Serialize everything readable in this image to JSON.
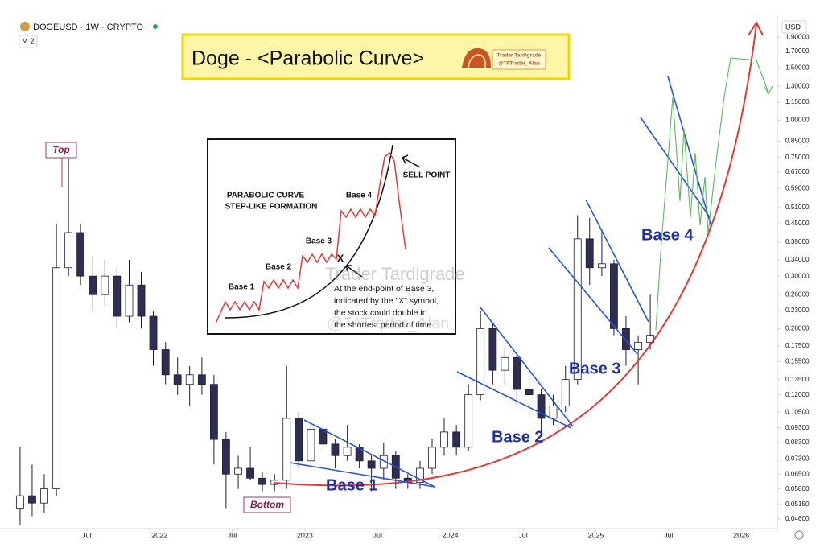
{
  "header": {
    "symbol": "DOGEUSD · 1W · CRYPTO",
    "interval_badge": "2",
    "currency": "USD"
  },
  "banner": {
    "title": "Doge - <Parabolic Curve>",
    "brand": "Trader Tardigrade",
    "handle": "@TATrader_Alan"
  },
  "inset": {
    "heading_1": "PARABOLIC CURVE",
    "heading_2": "STEP-LIKE FORMATION",
    "base_1": "Base 1",
    "base_2": "Base 2",
    "base_3": "Base 3",
    "base_4": "Base 4",
    "sell": "SELL POINT",
    "x_mark": "X",
    "note": [
      "At the end-point of Base 3,",
      "indicated by the \"X\" symbol,",
      "the stock could double in",
      "the shortest period of time"
    ]
  },
  "watermark": {
    "name": "Trader Tardigrade",
    "handle": "@TATrader_Alan"
  },
  "chart_data": {
    "type": "candlestick",
    "log_scale": true,
    "grid": false,
    "up_color": "#ffffff",
    "down_color": "#2e2e52",
    "edge_color": "#1c1c3a",
    "annotations": {
      "top": "Top",
      "bottom": "Bottom",
      "base_1": "Base 1",
      "base_2": "Base 2",
      "base_3": "Base 3",
      "base_4": "Base 4"
    },
    "x": [
      2021.042,
      2021.125,
      2021.208,
      2021.292,
      2021.375,
      2021.458,
      2021.542,
      2021.625,
      2021.708,
      2021.792,
      2021.875,
      2021.958,
      2022.042,
      2022.125,
      2022.208,
      2022.292,
      2022.375,
      2022.458,
      2022.542,
      2022.625,
      2022.708,
      2022.792,
      2022.875,
      2022.958,
      2023.042,
      2023.125,
      2023.208,
      2023.292,
      2023.375,
      2023.458,
      2023.542,
      2023.625,
      2023.708,
      2023.792,
      2023.875,
      2023.958,
      2024.042,
      2024.125,
      2024.208,
      2024.292,
      2024.375,
      2024.458,
      2024.542,
      2024.625,
      2024.708,
      2024.792,
      2024.875,
      2024.958,
      2025.042,
      2025.125,
      2025.208,
      2025.292,
      2025.375
    ],
    "open": [
      0.05,
      0.055,
      0.052,
      0.058,
      0.32,
      0.42,
      0.3,
      0.26,
      0.3,
      0.22,
      0.28,
      0.22,
      0.17,
      0.14,
      0.13,
      0.14,
      0.13,
      0.085,
      0.065,
      0.068,
      0.063,
      0.06,
      0.062,
      0.1,
      0.072,
      0.092,
      0.082,
      0.075,
      0.08,
      0.072,
      0.068,
      0.075,
      0.063,
      0.061,
      0.068,
      0.08,
      0.09,
      0.08,
      0.12,
      0.2,
      0.145,
      0.16,
      0.125,
      0.12,
      0.1,
      0.11,
      0.135,
      0.4,
      0.32,
      0.33,
      0.2,
      0.17,
      0.18
    ],
    "high": [
      0.08,
      0.07,
      0.065,
      0.45,
      0.74,
      0.45,
      0.35,
      0.34,
      0.32,
      0.34,
      0.31,
      0.23,
      0.18,
      0.16,
      0.15,
      0.16,
      0.14,
      0.09,
      0.075,
      0.08,
      0.066,
      0.065,
      0.15,
      0.105,
      0.095,
      0.095,
      0.085,
      0.095,
      0.082,
      0.075,
      0.083,
      0.078,
      0.065,
      0.072,
      0.085,
      0.1,
      0.095,
      0.13,
      0.23,
      0.21,
      0.175,
      0.165,
      0.145,
      0.125,
      0.12,
      0.15,
      0.48,
      0.47,
      0.43,
      0.34,
      0.22,
      0.19,
      0.26
    ],
    "low": [
      0.044,
      0.047,
      0.048,
      0.055,
      0.3,
      0.28,
      0.23,
      0.24,
      0.2,
      0.21,
      0.2,
      0.15,
      0.13,
      0.12,
      0.11,
      0.12,
      0.07,
      0.05,
      0.058,
      0.062,
      0.057,
      0.057,
      0.058,
      0.068,
      0.07,
      0.078,
      0.068,
      0.072,
      0.068,
      0.057,
      0.062,
      0.058,
      0.058,
      0.058,
      0.065,
      0.075,
      0.075,
      0.078,
      0.115,
      0.13,
      0.13,
      0.11,
      0.1,
      0.09,
      0.095,
      0.105,
      0.13,
      0.28,
      0.3,
      0.19,
      0.15,
      0.13,
      0.17
    ],
    "close": [
      0.055,
      0.052,
      0.058,
      0.32,
      0.42,
      0.3,
      0.26,
      0.3,
      0.22,
      0.28,
      0.22,
      0.17,
      0.14,
      0.13,
      0.14,
      0.13,
      0.085,
      0.065,
      0.068,
      0.063,
      0.06,
      0.062,
      0.1,
      0.072,
      0.092,
      0.082,
      0.075,
      0.08,
      0.072,
      0.068,
      0.075,
      0.063,
      0.061,
      0.068,
      0.08,
      0.09,
      0.08,
      0.12,
      0.2,
      0.145,
      0.16,
      0.125,
      0.12,
      0.1,
      0.11,
      0.135,
      0.4,
      0.32,
      0.33,
      0.2,
      0.17,
      0.18,
      0.19
    ],
    "xlim": [
      2020.904,
      2026.243
    ],
    "xticks": [
      {
        "value": 2021.5,
        "label": "Jul"
      },
      2022,
      {
        "value": 2022.5,
        "label": "Jul"
      },
      2023,
      {
        "value": 2023.5,
        "label": "Jul"
      },
      2024,
      {
        "value": 2024.5,
        "label": "Jul"
      },
      2025,
      {
        "value": 2025.5,
        "label": "Jul"
      },
      2026
    ],
    "ylim": [
      0.0432,
      2.1
    ],
    "yticks": [
      {
        "value": 1.9,
        "label": "1.90000"
      },
      {
        "value": 1.7,
        "label": "1.70000"
      },
      {
        "value": 1.5,
        "label": "1.50000"
      },
      {
        "value": 1.3,
        "label": "1.30000"
      },
      {
        "value": 1.15,
        "label": "1.15000"
      },
      {
        "value": 1,
        "label": "1.00000"
      },
      {
        "value": 0.85,
        "label": "0.85000"
      },
      {
        "value": 0.75,
        "label": "0.75000"
      },
      {
        "value": 0.67,
        "label": "0.67000"
      },
      {
        "value": 0.59,
        "label": "0.59000"
      },
      {
        "value": 0.51,
        "label": "0.51000"
      },
      {
        "value": 0.45,
        "label": "0.45000"
      },
      {
        "value": 0.39,
        "label": "0.39000"
      },
      {
        "value": 0.34,
        "label": "0.34000"
      },
      {
        "value": 0.3,
        "label": "0.30000"
      },
      {
        "value": 0.26,
        "label": "0.26000"
      },
      {
        "value": 0.23,
        "label": "0.23000"
      },
      {
        "value": 0.2,
        "label": "0.20000"
      },
      {
        "value": 0.175,
        "label": "0.17500"
      },
      {
        "value": 0.155,
        "label": "0.15500"
      },
      {
        "value": 0.135,
        "label": "0.13500"
      },
      {
        "value": 0.12,
        "label": "0.12000"
      },
      {
        "value": 0.105,
        "label": "0.10500"
      },
      {
        "value": 0.093,
        "label": "0.09300"
      },
      {
        "value": 0.083,
        "label": "0.08300"
      },
      {
        "value": 0.073,
        "label": "0.07300"
      },
      {
        "value": 0.065,
        "label": "0.06500"
      },
      {
        "value": 0.058,
        "label": "0.05800"
      },
      {
        "value": 0.0515,
        "label": "0.05150"
      },
      {
        "value": 0.046,
        "label": "0.04600"
      }
    ]
  }
}
